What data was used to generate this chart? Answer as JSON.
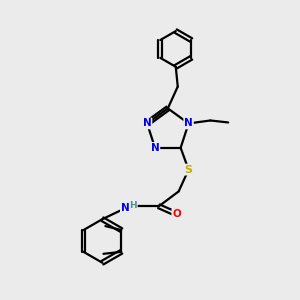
{
  "background_color": "#ebebeb",
  "atom_colors": {
    "N": "#0000ee",
    "O": "#ff0000",
    "S": "#ccaa00",
    "C": "#000000",
    "H": "#4a9090"
  },
  "bond_color": "#000000"
}
